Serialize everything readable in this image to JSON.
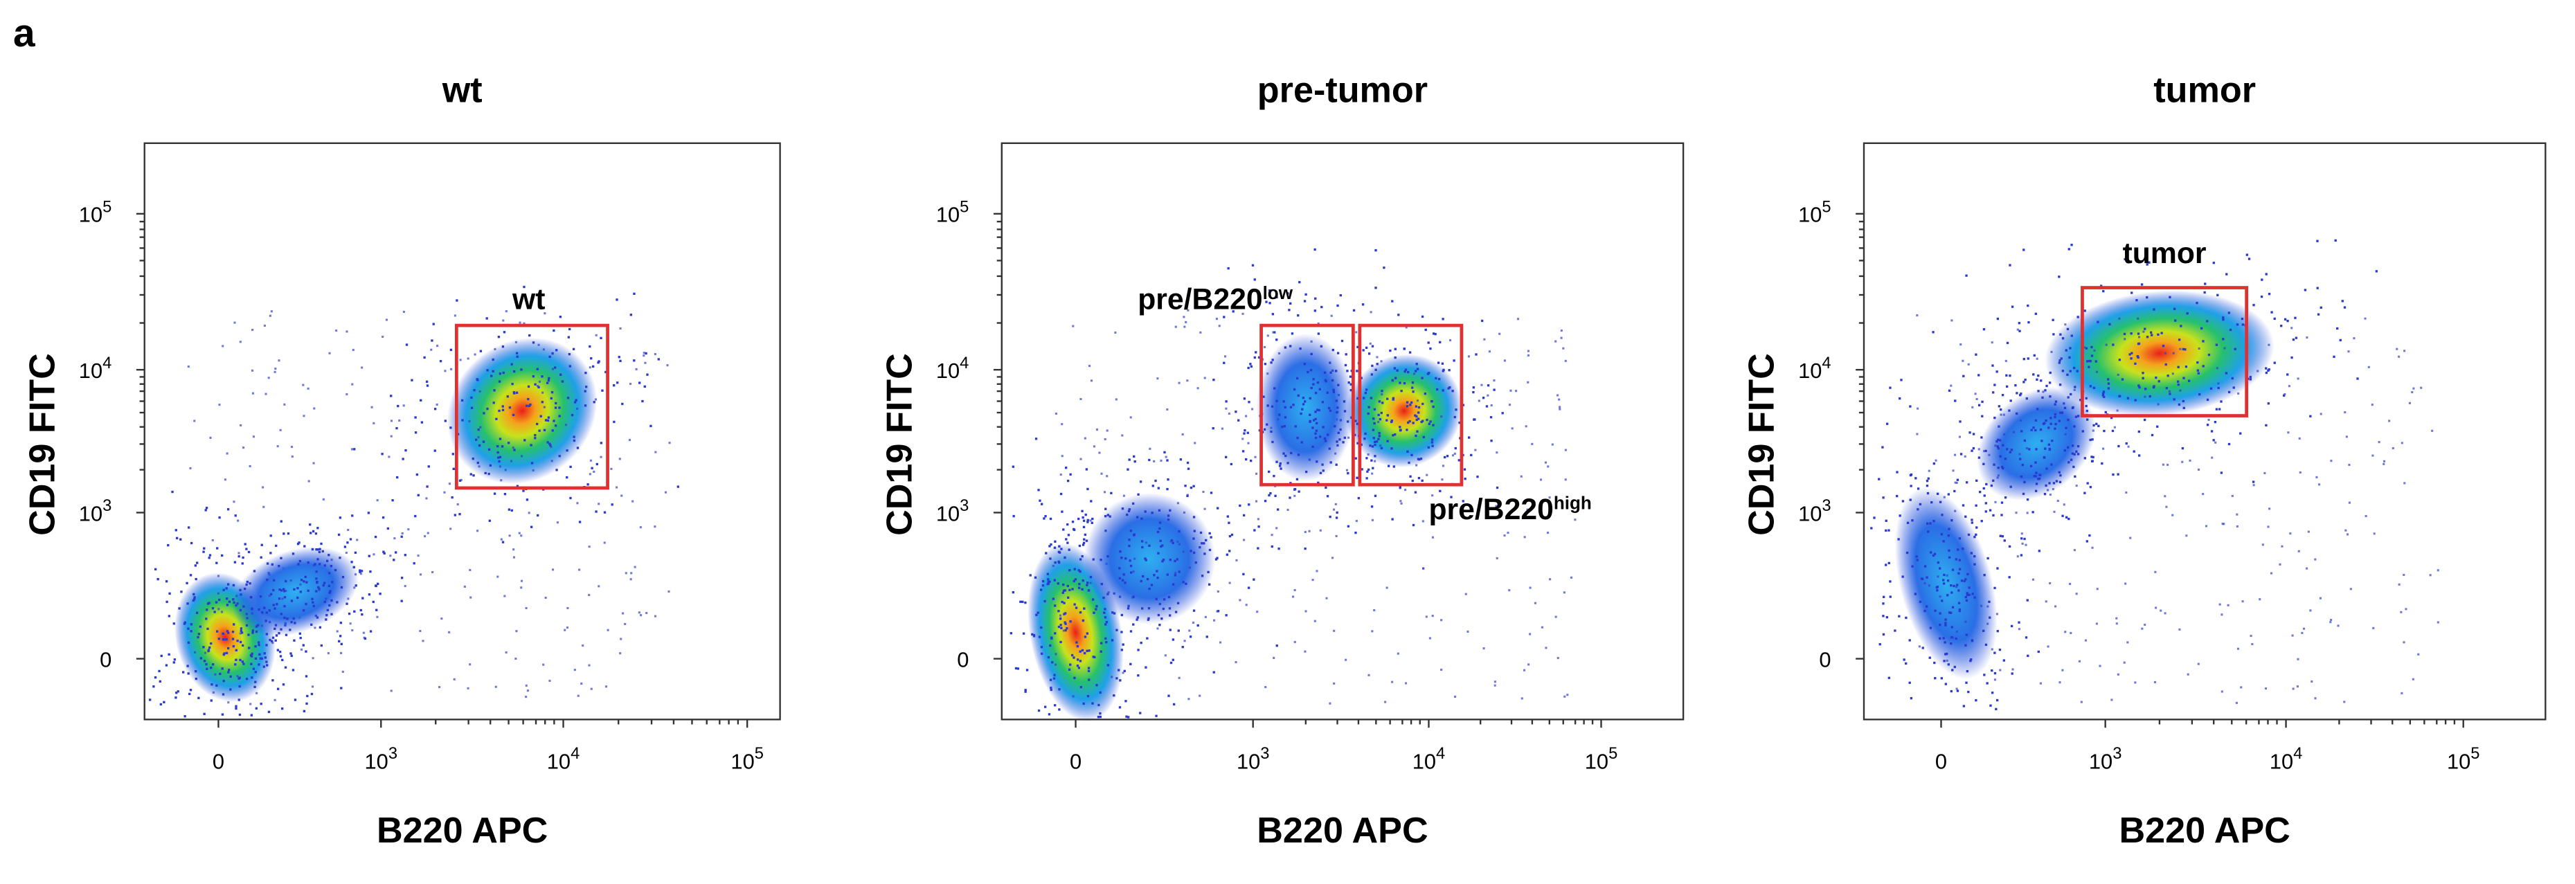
{
  "figure_label": "a",
  "panels": [
    {
      "title": "wt",
      "y_label": "CD19 FITC",
      "x_label": "B220 APC",
      "yticks": [
        {
          "base": "10",
          "exp": "5"
        },
        {
          "base": "10",
          "exp": "4"
        },
        {
          "base": "10",
          "exp": "3"
        },
        {
          "base": "0"
        }
      ],
      "xticks": [
        {
          "base": "0"
        },
        {
          "base": "10",
          "exp": "3"
        },
        {
          "base": "10",
          "exp": "4"
        },
        {
          "base": "10",
          "exp": "5"
        }
      ],
      "gates": [
        {
          "label": "wt"
        }
      ]
    },
    {
      "title": "pre-tumor",
      "y_label": "CD19 FITC",
      "x_label": "B220 APC",
      "yticks": [
        {
          "base": "10",
          "exp": "5"
        },
        {
          "base": "10",
          "exp": "4"
        },
        {
          "base": "10",
          "exp": "3"
        },
        {
          "base": "0"
        }
      ],
      "xticks": [
        {
          "base": "0"
        },
        {
          "base": "10",
          "exp": "3"
        },
        {
          "base": "10",
          "exp": "4"
        },
        {
          "base": "10",
          "exp": "5"
        }
      ],
      "gates": [
        {
          "label": "pre/B220",
          "sup": "low"
        },
        {
          "label": "pre/B220",
          "sup": "high"
        }
      ]
    },
    {
      "title": "tumor",
      "y_label": "CD19 FITC",
      "x_label": "B220 APC",
      "yticks": [
        {
          "base": "10",
          "exp": "5"
        },
        {
          "base": "10",
          "exp": "4"
        },
        {
          "base": "10",
          "exp": "3"
        },
        {
          "base": "0"
        }
      ],
      "xticks": [
        {
          "base": "0"
        },
        {
          "base": "10",
          "exp": "3"
        },
        {
          "base": "10",
          "exp": "4"
        },
        {
          "base": "10",
          "exp": "5"
        }
      ],
      "gates": [
        {
          "label": "tumor"
        }
      ]
    }
  ]
}
